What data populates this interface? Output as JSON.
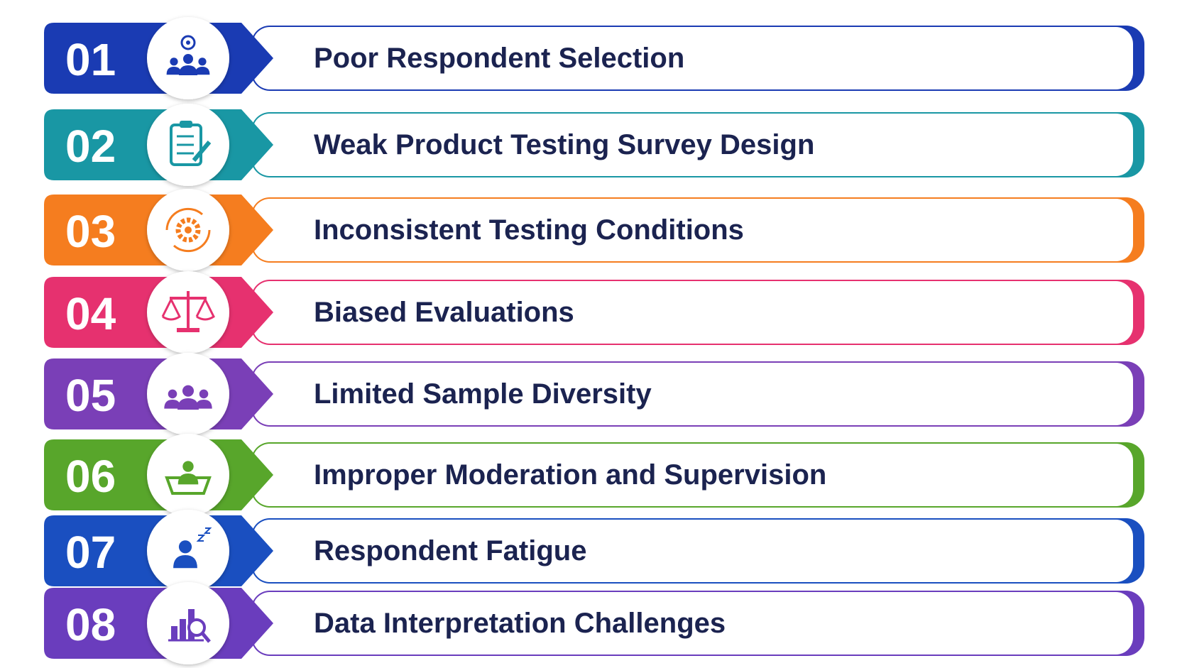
{
  "items": [
    {
      "number": "01",
      "label": "Poor Respondent Selection",
      "color": "#1a3bb3"
    },
    {
      "number": "02",
      "label": "Weak Product Testing Survey Design",
      "color": "#1997a4"
    },
    {
      "number": "03",
      "label": "Inconsistent Testing Conditions",
      "color": "#f57d1f"
    },
    {
      "number": "04",
      "label": "Biased Evaluations",
      "color": "#e6316f"
    },
    {
      "number": "05",
      "label": "Limited Sample Diversity",
      "color": "#7a3fb7"
    },
    {
      "number": "06",
      "label": "Improper Moderation and Supervision",
      "color": "#58a62b"
    },
    {
      "number": "07",
      "label": "Respondent Fatigue",
      "color": "#1a4fc0"
    },
    {
      "number": "08",
      "label": "Data Interpretation Challenges",
      "color": "#6a3dbd"
    }
  ]
}
